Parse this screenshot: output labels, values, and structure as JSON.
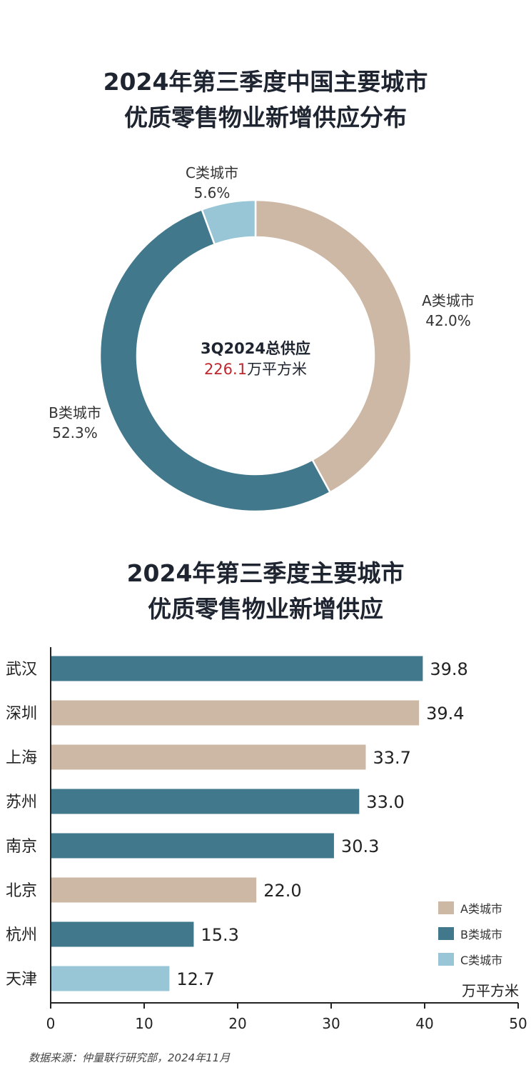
{
  "donut": {
    "title_line1": "2024年第三季度中国主要城市",
    "title_line2": "优质零售物业新增供应分布",
    "center_line1": "3Q2024总供应",
    "center_value": "226.1",
    "center_unit": "万平方米",
    "center_value_color": "#c0272d"
  },
  "bar": {
    "title_line1": "2024年第三季度主要城市",
    "title_line2": "优质零售物业新增供应",
    "unit_label": "万平方米"
  },
  "legend": [
    {
      "label": "A类城市",
      "color": "#cdb8a6"
    },
    {
      "label": "B类城市",
      "color": "#41788c"
    },
    {
      "label": "C类城市",
      "color": "#98c6d6"
    }
  ],
  "source": "数据来源：仲量联行研究部，2024年11月",
  "chart_data": [
    {
      "type": "pie",
      "variant": "donut",
      "slices": [
        {
          "label": "A类城市",
          "value": 42.0,
          "value_label": "42.0%",
          "color": "#cdb8a6"
        },
        {
          "label": "B类城市",
          "value": 52.3,
          "value_label": "52.3%",
          "color": "#41788c"
        },
        {
          "label": "C类城市",
          "value": 5.6,
          "value_label": "5.6%",
          "color": "#98c6d6"
        }
      ]
    },
    {
      "type": "bar",
      "orientation": "horizontal",
      "categories": [
        "武汉",
        "深圳",
        "上海",
        "苏州",
        "南京",
        "北京",
        "杭州",
        "天津"
      ],
      "values": [
        39.8,
        39.4,
        33.7,
        33.0,
        30.3,
        22.0,
        15.3,
        12.7
      ],
      "value_labels": [
        "39.8",
        "39.4",
        "33.7",
        "33.0",
        "30.3",
        "22.0",
        "15.3",
        "12.7"
      ],
      "groups": [
        "B类城市",
        "A类城市",
        "A类城市",
        "B类城市",
        "B类城市",
        "A类城市",
        "B类城市",
        "C类城市"
      ],
      "xlim": [
        0,
        50
      ],
      "xticks": [
        0,
        10,
        20,
        30,
        40,
        50
      ],
      "xlabel": "万平方米",
      "legend_position": "bottom-right",
      "grid": false
    }
  ]
}
